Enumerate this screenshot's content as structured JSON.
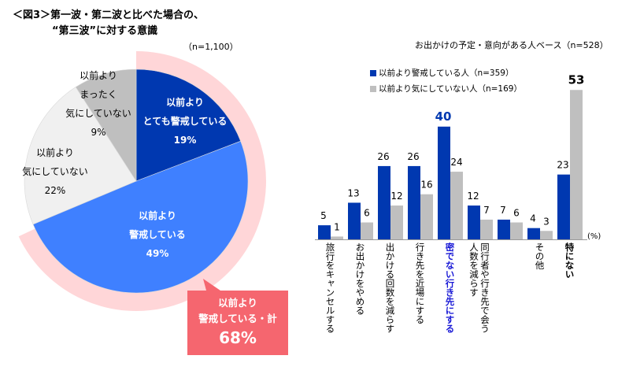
{
  "title": {
    "line1": "＜図3＞第一波・第二波と比べた場合の、",
    "line2": "“第三波”に対する意識"
  },
  "colors": {
    "dark_blue": "#0038b0",
    "light_blue": "#3f80ff",
    "light_gray": "#f0f0f0",
    "gray": "#bfbfbf",
    "pink_ring": "#ffd6d8",
    "callout": "#f5666f",
    "highlight_text": "#1a1ad6"
  },
  "chart_data": [
    {
      "type": "pie",
      "title": "第一波・第二波と比べた場合の、“第三波”に対する意識",
      "n_label": "（n=1,100）",
      "unit": "%",
      "slices": [
        {
          "label_lines": [
            "以前より",
            "とても警戒している"
          ],
          "value": 19,
          "value_label": "19%",
          "color_key": "dark_blue"
        },
        {
          "label_lines": [
            "以前より",
            "警戒している"
          ],
          "value": 49,
          "value_label": "49%",
          "color_key": "light_blue"
        },
        {
          "label_lines": [
            "以前より",
            "気にしていない"
          ],
          "value": 22,
          "value_label": "22%",
          "color_key": "light_gray"
        },
        {
          "label_lines": [
            "以前より",
            "まったく",
            "気にしていない"
          ],
          "value": 9,
          "value_label": "9%",
          "color_key": "gray"
        }
      ],
      "highlight_ring": {
        "covers": [
          "以前より とても警戒している",
          "以前より 警戒している"
        ],
        "total": 68
      },
      "callout": {
        "line1": "以前より",
        "line2": "警戒している・計",
        "value": "68%"
      }
    },
    {
      "type": "bar",
      "base_note": "お出かけの予定・意向がある人ベース（n=528）",
      "unit_label": "(%)",
      "ylim": [
        0,
        55
      ],
      "grid": false,
      "legend_position": "top-left",
      "categories": [
        "旅行をキャンセルする",
        "お出かけをやめる",
        "出かける回数を減らす",
        "行き先を近場にする",
        "密でない行き先にする",
        "同行者や行き先で会う人数を減らす",
        "その他",
        "特にない"
      ],
      "category_lines": [
        [
          "旅行をキャンセルする"
        ],
        [
          "お出かけをやめる"
        ],
        [
          "出かける回数を減らす"
        ],
        [
          "行き先を近場にする"
        ],
        [
          "密でない行き先にする"
        ],
        [
          "同行者や行き先で会う",
          "人数を減らす"
        ],
        [
          "その他"
        ],
        [
          "特にない"
        ]
      ],
      "category_style": [
        "normal",
        "normal",
        "normal",
        "normal",
        "blue-bold",
        "normal",
        "normal",
        "bold"
      ],
      "series": [
        {
          "name": "以前より警戒している人（n=359）",
          "color_key": "dark_blue",
          "values": [
            5,
            13,
            26,
            26,
            40,
            12,
            7,
            4,
            23
          ]
        },
        {
          "name": "以前より気にしていない人（n=169）",
          "color_key": "gray",
          "values": [
            1,
            6,
            12,
            16,
            24,
            7,
            6,
            3,
            53
          ]
        }
      ],
      "value_label_style": {
        "series0": [
          "normal",
          "normal",
          "normal",
          "normal",
          "blue-bold",
          "normal",
          "normal",
          "normal",
          "normal"
        ],
        "series1": [
          "normal",
          "normal",
          "normal",
          "normal",
          "normal",
          "normal",
          "normal",
          "normal",
          "bold"
        ]
      }
    }
  ],
  "bar_groups_note": "9 bar groups; the 7th group has no category label",
  "group_labels": [
    "旅行をキャンセルする",
    "お出かけをやめる",
    "出かける回数を減らす",
    "行き先を近場にする",
    "密でない行き先にする",
    "同行者や行き先で会う人数を減らす",
    "",
    "その他",
    "特にない"
  ]
}
